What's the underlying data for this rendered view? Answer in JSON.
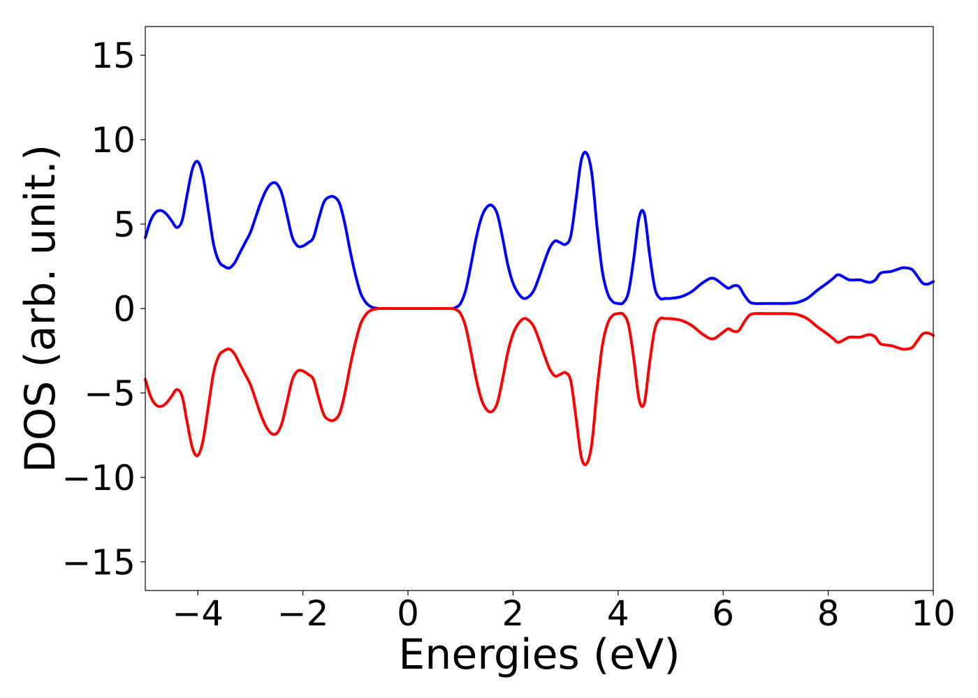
{
  "chart_data": {
    "type": "line",
    "title": "",
    "xlabel": "Energies (eV)",
    "ylabel": "DOS (arb. unit.)",
    "xlim": [
      -5,
      10
    ],
    "ylim": [
      -16.7,
      16.7
    ],
    "xticks": [
      -4,
      -2,
      0,
      2,
      4,
      6,
      8,
      10
    ],
    "yticks": [
      -15,
      -10,
      -5,
      0,
      5,
      10,
      15
    ],
    "xtick_labels": [
      "−4",
      "−2",
      "0",
      "2",
      "4",
      "6",
      "8",
      "10"
    ],
    "ytick_labels": [
      "−15",
      "−10",
      "−5",
      "0",
      "5",
      "10",
      "15"
    ],
    "grid": false,
    "legend": false,
    "series": [
      {
        "color": "#0000ff",
        "x": [
          -5.0,
          -4.9,
          -4.8,
          -4.7,
          -4.6,
          -4.5,
          -4.4,
          -4.3,
          -4.2,
          -4.1,
          -4.0,
          -3.9,
          -3.8,
          -3.7,
          -3.6,
          -3.5,
          -3.4,
          -3.3,
          -3.2,
          -3.1,
          -3.0,
          -2.9,
          -2.8,
          -2.7,
          -2.6,
          -2.5,
          -2.4,
          -2.3,
          -2.2,
          -2.1,
          -2.0,
          -1.9,
          -1.8,
          -1.7,
          -1.6,
          -1.5,
          -1.4,
          -1.3,
          -1.2,
          -1.1,
          -1.0,
          -0.9,
          -0.8,
          -0.7,
          -0.6,
          -0.5,
          0.0,
          0.5,
          0.8,
          0.9,
          1.0,
          1.1,
          1.2,
          1.3,
          1.4,
          1.5,
          1.6,
          1.7,
          1.8,
          1.9,
          2.0,
          2.1,
          2.2,
          2.3,
          2.4,
          2.5,
          2.6,
          2.7,
          2.8,
          2.9,
          3.0,
          3.1,
          3.2,
          3.3,
          3.4,
          3.5,
          3.6,
          3.7,
          3.8,
          3.9,
          4.0,
          4.1,
          4.2,
          4.3,
          4.4,
          4.5,
          4.6,
          4.7,
          4.8,
          4.9,
          5.0,
          5.2,
          5.4,
          5.6,
          5.8,
          6.0,
          6.1,
          6.2,
          6.3,
          6.4,
          6.5,
          6.6,
          6.8,
          7.0,
          7.2,
          7.4,
          7.6,
          7.8,
          8.0,
          8.1,
          8.2,
          8.4,
          8.6,
          8.7,
          8.8,
          8.9,
          9.0,
          9.2,
          9.4,
          9.5,
          9.6,
          9.7,
          9.8,
          9.9,
          10.0
        ],
        "y": [
          4.2,
          5.2,
          5.7,
          5.8,
          5.6,
          5.2,
          4.8,
          5.2,
          6.8,
          8.3,
          8.7,
          7.8,
          5.8,
          3.8,
          2.8,
          2.5,
          2.4,
          2.7,
          3.3,
          3.9,
          4.5,
          5.4,
          6.3,
          7.0,
          7.4,
          7.4,
          6.8,
          5.5,
          4.2,
          3.7,
          3.7,
          3.9,
          4.2,
          5.3,
          6.3,
          6.6,
          6.6,
          6.2,
          5.0,
          3.4,
          2.0,
          0.9,
          0.35,
          0.1,
          0.02,
          0.0,
          0.0,
          0.0,
          0.0,
          0.05,
          0.3,
          1.1,
          2.6,
          4.2,
          5.4,
          6.0,
          6.1,
          5.6,
          4.2,
          2.6,
          1.5,
          0.9,
          0.6,
          0.7,
          1.1,
          1.9,
          2.8,
          3.6,
          4.0,
          3.9,
          3.8,
          4.3,
          6.5,
          8.8,
          9.2,
          8.0,
          4.8,
          2.2,
          0.9,
          0.4,
          0.3,
          0.35,
          1.0,
          3.0,
          5.4,
          5.6,
          3.2,
          1.2,
          0.6,
          0.6,
          0.6,
          0.7,
          1.0,
          1.5,
          1.8,
          1.4,
          1.2,
          1.35,
          1.3,
          0.8,
          0.4,
          0.3,
          0.3,
          0.3,
          0.3,
          0.35,
          0.6,
          1.1,
          1.55,
          1.8,
          2.0,
          1.7,
          1.7,
          1.6,
          1.55,
          1.7,
          2.1,
          2.2,
          2.4,
          2.4,
          2.3,
          1.9,
          1.5,
          1.45,
          1.6
        ]
      },
      {
        "color": "#ff0000",
        "x": [
          -5.0,
          -4.9,
          -4.8,
          -4.7,
          -4.6,
          -4.5,
          -4.4,
          -4.3,
          -4.2,
          -4.1,
          -4.0,
          -3.9,
          -3.8,
          -3.7,
          -3.6,
          -3.5,
          -3.4,
          -3.3,
          -3.2,
          -3.1,
          -3.0,
          -2.9,
          -2.8,
          -2.7,
          -2.6,
          -2.5,
          -2.4,
          -2.3,
          -2.2,
          -2.1,
          -2.0,
          -1.9,
          -1.8,
          -1.7,
          -1.6,
          -1.5,
          -1.4,
          -1.3,
          -1.2,
          -1.1,
          -1.0,
          -0.9,
          -0.8,
          -0.7,
          -0.6,
          -0.5,
          0.0,
          0.5,
          0.8,
          0.9,
          1.0,
          1.1,
          1.2,
          1.3,
          1.4,
          1.5,
          1.6,
          1.7,
          1.8,
          1.9,
          2.0,
          2.1,
          2.2,
          2.3,
          2.4,
          2.5,
          2.6,
          2.7,
          2.8,
          2.9,
          3.0,
          3.1,
          3.2,
          3.3,
          3.4,
          3.5,
          3.6,
          3.7,
          3.8,
          3.9,
          4.0,
          4.1,
          4.2,
          4.3,
          4.4,
          4.5,
          4.6,
          4.7,
          4.8,
          4.9,
          5.0,
          5.2,
          5.4,
          5.6,
          5.8,
          6.0,
          6.1,
          6.2,
          6.3,
          6.4,
          6.5,
          6.6,
          6.8,
          7.0,
          7.2,
          7.4,
          7.6,
          7.8,
          8.0,
          8.1,
          8.2,
          8.4,
          8.6,
          8.7,
          8.8,
          8.9,
          9.0,
          9.2,
          9.4,
          9.5,
          9.6,
          9.7,
          9.8,
          9.9,
          10.0
        ],
        "y": [
          -4.2,
          -5.2,
          -5.7,
          -5.8,
          -5.6,
          -5.2,
          -4.8,
          -5.2,
          -6.8,
          -8.3,
          -8.7,
          -7.8,
          -5.8,
          -3.8,
          -2.8,
          -2.5,
          -2.4,
          -2.7,
          -3.3,
          -3.9,
          -4.5,
          -5.4,
          -6.3,
          -7.0,
          -7.4,
          -7.4,
          -6.8,
          -5.5,
          -4.2,
          -3.7,
          -3.7,
          -3.9,
          -4.2,
          -5.3,
          -6.3,
          -6.6,
          -6.6,
          -6.2,
          -5.0,
          -3.4,
          -2.0,
          -0.9,
          -0.35,
          -0.1,
          -0.02,
          0.0,
          0.0,
          0.0,
          0.0,
          -0.05,
          -0.3,
          -1.1,
          -2.6,
          -4.2,
          -5.4,
          -6.0,
          -6.1,
          -5.6,
          -4.2,
          -2.6,
          -1.5,
          -0.9,
          -0.6,
          -0.7,
          -1.1,
          -1.9,
          -2.8,
          -3.6,
          -4.0,
          -3.9,
          -3.8,
          -4.3,
          -6.5,
          -8.8,
          -9.2,
          -8.0,
          -4.8,
          -2.2,
          -0.9,
          -0.4,
          -0.3,
          -0.35,
          -1.0,
          -3.0,
          -5.4,
          -5.6,
          -3.2,
          -1.2,
          -0.6,
          -0.6,
          -0.6,
          -0.7,
          -1.0,
          -1.5,
          -1.8,
          -1.4,
          -1.2,
          -1.35,
          -1.3,
          -0.8,
          -0.4,
          -0.3,
          -0.3,
          -0.3,
          -0.3,
          -0.35,
          -0.6,
          -1.1,
          -1.55,
          -1.8,
          -2.0,
          -1.7,
          -1.7,
          -1.6,
          -1.55,
          -1.7,
          -2.1,
          -2.2,
          -2.4,
          -2.4,
          -2.3,
          -1.9,
          -1.5,
          -1.45,
          -1.6
        ]
      }
    ]
  }
}
